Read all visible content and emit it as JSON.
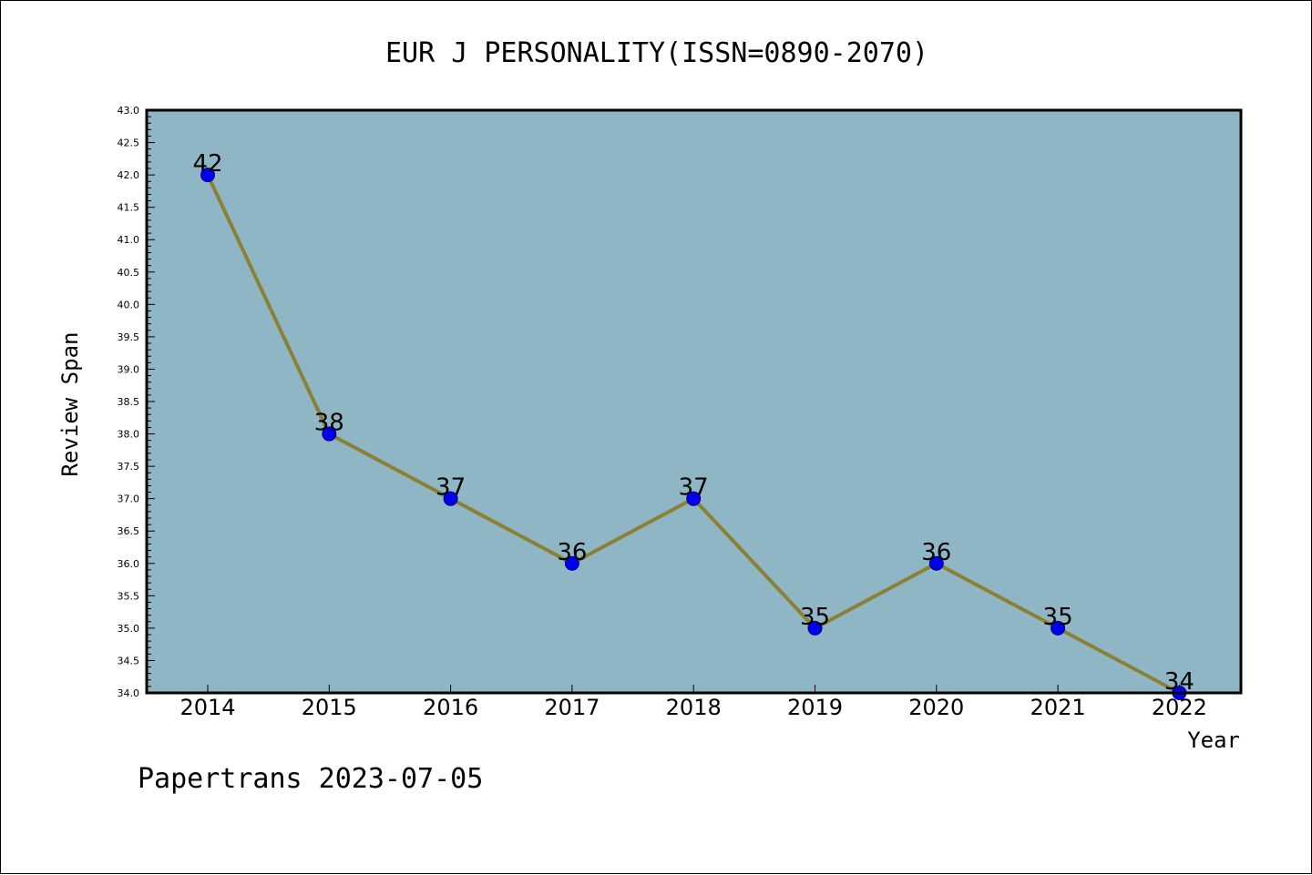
{
  "chart_data": {
    "type": "line",
    "title": "EUR J PERSONALITY(ISSN=0890-2070)",
    "xlabel": "Year",
    "ylabel": "Review Span",
    "categories": [
      "2014",
      "2015",
      "2016",
      "2017",
      "2018",
      "2019",
      "2020",
      "2021",
      "2022"
    ],
    "series": [
      {
        "values": [
          42,
          38,
          37,
          36,
          37,
          35,
          36,
          35,
          34
        ]
      }
    ],
    "data_labels": [
      "42",
      "38",
      "37",
      "36",
      "37",
      "35",
      "36",
      "35",
      "34"
    ],
    "ylim": [
      34.0,
      43.0
    ],
    "y_tick_step": 0.5,
    "y_tick_labels": [
      "34.0",
      "34.5",
      "35.0",
      "35.5",
      "36.0",
      "36.5",
      "37.0",
      "37.5",
      "38.0",
      "38.5",
      "39.0",
      "39.5",
      "40.0",
      "40.5",
      "41.0",
      "41.5",
      "42.0",
      "42.5",
      "43.0"
    ],
    "grid": false,
    "legend": "none",
    "colors": {
      "plot_background": "#8fb6c4",
      "line": "#8b8033",
      "marker": "#0000ee",
      "marker_edge": "#00007a"
    }
  },
  "footer": {
    "text": "Papertrans 2023-07-05"
  }
}
